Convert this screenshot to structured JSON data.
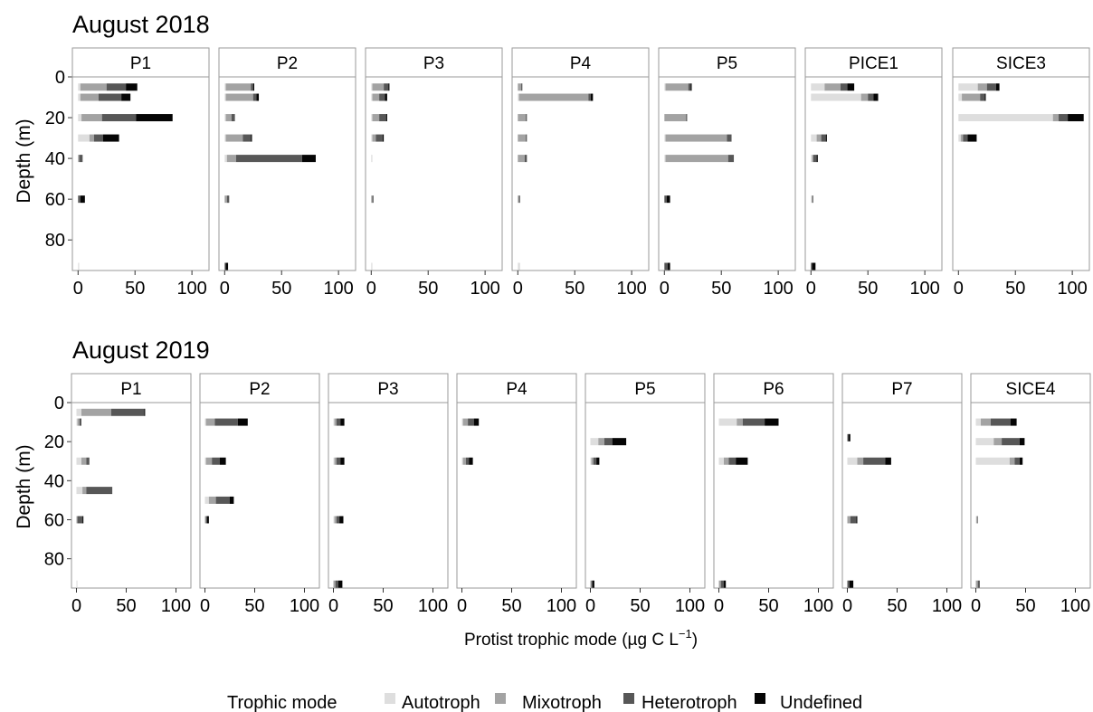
{
  "figure": {
    "xlabel": "Protist trophic mode",
    "xlabel_unit": "(µg C L",
    "xlabel_exp": "−1",
    "xlabel_close": ")",
    "ylabel": "Depth (m)",
    "legend_title": "Trophic mode",
    "legend_items": [
      "Autotroph",
      "Mixotroph",
      "Heterotroph",
      "Undefined"
    ],
    "colors": {
      "Autotroph": "#dedede",
      "Mixotroph": "#a3a3a3",
      "Heterotroph": "#575757",
      "Undefined": "#050505"
    },
    "x_ticks": [
      "0",
      "50",
      "100"
    ],
    "y_ticks": [
      "0",
      "20",
      "40",
      "60",
      "80"
    ]
  },
  "chart_data": [
    {
      "type": "bar",
      "orientation": "horizontal-stacked",
      "title": "August 2018",
      "xlim": [
        -5,
        115
      ],
      "ylim": [
        0,
        95
      ],
      "series_names": [
        "Autotroph",
        "Mixotroph",
        "Heterotroph",
        "Undefined"
      ],
      "panels": [
        {
          "name": "P1",
          "bars": [
            {
              "depth": 5,
              "values": [
                2,
                23,
                17,
                10
              ]
            },
            {
              "depth": 10,
              "values": [
                2,
                16,
                20,
                8
              ]
            },
            {
              "depth": 20,
              "values": [
                3,
                18,
                30,
                32
              ]
            },
            {
              "depth": 30,
              "values": [
                10,
                4,
                8,
                14
              ]
            },
            {
              "depth": 40,
              "values": [
                0,
                1,
                3,
                0
              ]
            },
            {
              "depth": 60,
              "values": [
                0,
                0,
                2,
                4
              ]
            },
            {
              "depth": 93,
              "values": [
                1,
                0,
                0,
                0
              ]
            }
          ]
        },
        {
          "name": "P2",
          "bars": [
            {
              "depth": 5,
              "values": [
                1,
                22,
                2,
                1
              ]
            },
            {
              "depth": 10,
              "values": [
                1,
                24,
                3,
                2
              ]
            },
            {
              "depth": 20,
              "values": [
                1,
                5,
                3,
                0
              ]
            },
            {
              "depth": 30,
              "values": [
                1,
                15,
                7,
                1
              ]
            },
            {
              "depth": 40,
              "values": [
                2,
                8,
                58,
                12
              ]
            },
            {
              "depth": 60,
              "values": [
                0,
                2,
                2,
                0
              ]
            },
            {
              "depth": 93,
              "values": [
                0,
                0,
                1,
                2
              ]
            }
          ]
        },
        {
          "name": "P3",
          "bars": [
            {
              "depth": 5,
              "values": [
                1,
                10,
                4,
                1
              ]
            },
            {
              "depth": 10,
              "values": [
                1,
                6,
                5,
                2
              ]
            },
            {
              "depth": 20,
              "values": [
                1,
                6,
                6,
                1
              ]
            },
            {
              "depth": 30,
              "values": [
                1,
                3,
                6,
                1
              ]
            },
            {
              "depth": 40,
              "values": [
                1,
                0,
                0,
                0
              ]
            },
            {
              "depth": 60,
              "values": [
                0,
                1,
                1,
                0
              ]
            },
            {
              "depth": 93,
              "values": [
                1,
                0,
                0,
                0
              ]
            }
          ]
        },
        {
          "name": "P4",
          "bars": [
            {
              "depth": 5,
              "values": [
                0,
                3,
                1,
                0
              ]
            },
            {
              "depth": 10,
              "values": [
                1,
                61,
                2,
                2
              ]
            },
            {
              "depth": 20,
              "values": [
                0,
                7,
                1,
                0
              ]
            },
            {
              "depth": 30,
              "values": [
                0,
                7,
                1,
                0
              ]
            },
            {
              "depth": 40,
              "values": [
                0,
                6,
                2,
                0
              ]
            },
            {
              "depth": 60,
              "values": [
                0,
                1,
                1,
                0
              ]
            },
            {
              "depth": 93,
              "values": [
                2,
                0,
                0,
                0
              ]
            }
          ]
        },
        {
          "name": "P5",
          "bars": [
            {
              "depth": 5,
              "values": [
                1,
                20,
                2,
                1
              ]
            },
            {
              "depth": 20,
              "values": [
                0,
                19,
                1,
                0
              ]
            },
            {
              "depth": 30,
              "values": [
                1,
                54,
                4,
                0
              ]
            },
            {
              "depth": 40,
              "values": [
                1,
                55,
                5,
                0
              ]
            },
            {
              "depth": 60,
              "values": [
                0,
                0,
                2,
                3
              ]
            },
            {
              "depth": 93,
              "values": [
                0,
                0,
                3,
                2
              ]
            }
          ]
        },
        {
          "name": "PICE1",
          "bars": [
            {
              "depth": 5,
              "values": [
                12,
                14,
                6,
                6
              ]
            },
            {
              "depth": 10,
              "values": [
                44,
                6,
                5,
                4
              ]
            },
            {
              "depth": 30,
              "values": [
                5,
                4,
                4,
                1
              ]
            },
            {
              "depth": 40,
              "values": [
                1,
                1,
                3,
                1
              ]
            },
            {
              "depth": 60,
              "values": [
                1,
                0,
                1,
                0
              ]
            },
            {
              "depth": 93,
              "values": [
                0,
                0,
                1,
                3
              ]
            }
          ]
        },
        {
          "name": "SICE3",
          "bars": [
            {
              "depth": 5,
              "values": [
                17,
                8,
                8,
                3
              ]
            },
            {
              "depth": 10,
              "values": [
                3,
                16,
                4,
                1
              ]
            },
            {
              "depth": 20,
              "values": [
                83,
                5,
                8,
                14
              ]
            },
            {
              "depth": 30,
              "values": [
                2,
                2,
                4,
                8
              ]
            }
          ]
        }
      ]
    },
    {
      "type": "bar",
      "orientation": "horizontal-stacked",
      "title": "August 2019",
      "xlim": [
        -5,
        115
      ],
      "ylim": [
        0,
        95
      ],
      "series_names": [
        "Autotroph",
        "Mixotroph",
        "Heterotroph",
        "Undefined"
      ],
      "panels": [
        {
          "name": "P1",
          "bars": [
            {
              "depth": 5,
              "values": [
                5,
                30,
                33,
                1
              ]
            },
            {
              "depth": 10,
              "values": [
                1,
                2,
                2,
                0
              ]
            },
            {
              "depth": 30,
              "values": [
                5,
                5,
                3,
                0
              ]
            },
            {
              "depth": 45,
              "values": [
                6,
                4,
                26,
                0
              ]
            },
            {
              "depth": 60,
              "values": [
                0,
                1,
                5,
                1
              ]
            },
            {
              "depth": 93,
              "values": [
                1,
                0,
                0,
                0
              ]
            }
          ]
        },
        {
          "name": "P2",
          "bars": [
            {
              "depth": 10,
              "values": [
                1,
                9,
                23,
                10
              ]
            },
            {
              "depth": 30,
              "values": [
                1,
                6,
                8,
                6
              ]
            },
            {
              "depth": 50,
              "values": [
                4,
                7,
                14,
                4
              ]
            },
            {
              "depth": 60,
              "values": [
                0,
                1,
                1,
                2
              ]
            }
          ]
        },
        {
          "name": "P3",
          "bars": [
            {
              "depth": 10,
              "values": [
                1,
                2,
                4,
                4
              ]
            },
            {
              "depth": 30,
              "values": [
                1,
                2,
                4,
                4
              ]
            },
            {
              "depth": 60,
              "values": [
                1,
                2,
                3,
                4
              ]
            },
            {
              "depth": 93,
              "values": [
                0,
                2,
                3,
                4
              ]
            }
          ]
        },
        {
          "name": "P4",
          "bars": [
            {
              "depth": 10,
              "values": [
                1,
                5,
                6,
                5
              ]
            },
            {
              "depth": 30,
              "values": [
                1,
                3,
                3,
                4
              ]
            }
          ]
        },
        {
          "name": "P5",
          "bars": [
            {
              "depth": 20,
              "values": [
                8,
                6,
                8,
                14
              ]
            },
            {
              "depth": 30,
              "values": [
                1,
                2,
                3,
                3
              ]
            },
            {
              "depth": 93,
              "values": [
                0,
                1,
                1,
                2
              ]
            }
          ]
        },
        {
          "name": "P6",
          "bars": [
            {
              "depth": 10,
              "values": [
                18,
                6,
                22,
                14
              ]
            },
            {
              "depth": 30,
              "values": [
                5,
                5,
                7,
                12
              ]
            },
            {
              "depth": 93,
              "values": [
                0,
                2,
                3,
                2
              ]
            }
          ]
        },
        {
          "name": "P7",
          "bars": [
            {
              "depth": 18,
              "values": [
                0,
                0,
                1,
                2
              ]
            },
            {
              "depth": 30,
              "values": [
                10,
                6,
                22,
                6
              ]
            },
            {
              "depth": 60,
              "values": [
                0,
                3,
                6,
                1
              ]
            },
            {
              "depth": 93,
              "values": [
                0,
                0,
                2,
                4
              ]
            }
          ]
        },
        {
          "name": "SICE4",
          "bars": [
            {
              "depth": 10,
              "values": [
                5,
                10,
                20,
                6
              ]
            },
            {
              "depth": 20,
              "values": [
                18,
                8,
                18,
                5
              ]
            },
            {
              "depth": 30,
              "values": [
                34,
                5,
                5,
                3
              ]
            },
            {
              "depth": 60,
              "values": [
                1,
                0,
                1,
                0
              ]
            },
            {
              "depth": 93,
              "values": [
                0,
                2,
                2,
                0
              ]
            }
          ]
        }
      ]
    }
  ]
}
